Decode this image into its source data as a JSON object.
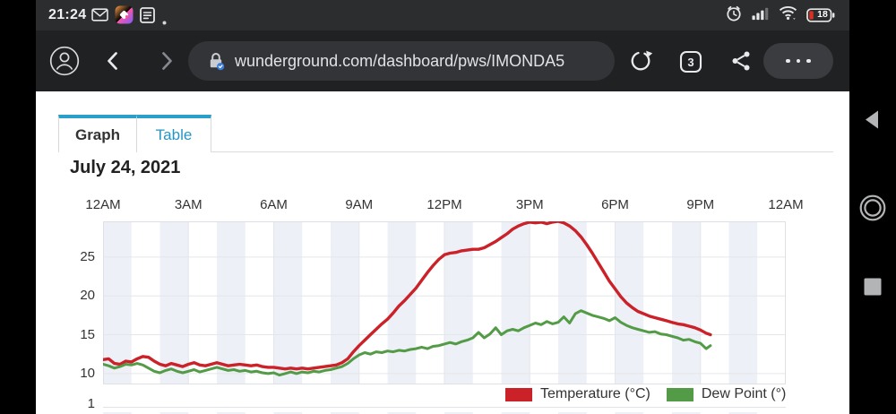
{
  "status_bar": {
    "time": "21:24",
    "battery_level": "18",
    "icons": [
      "gmail-icon",
      "gallery-icon",
      "notes-icon",
      "more-notifications-dot",
      "alarm-icon",
      "cell-signal-icon",
      "wifi-icon",
      "battery-icon"
    ]
  },
  "browser": {
    "url": "wunderground.com/dashboard/pws/IMONDA5",
    "tab_count": "3",
    "icons": [
      "account-icon",
      "back-icon",
      "forward-icon",
      "secure-lock-icon",
      "refresh-icon",
      "tab-count-box",
      "share-icon",
      "more-menu-dots"
    ]
  },
  "tabs": {
    "graph": "Graph",
    "table": "Table"
  },
  "page": {
    "date_title": "July 24, 2021"
  },
  "colors": {
    "accent_teal": "#2a9fc9",
    "temperature_red": "#cb2128",
    "dew_green": "#539b46",
    "band_fill": "#edf1f7",
    "gridline": "#e3e6ea"
  },
  "chart_data": {
    "type": "line",
    "title": "July 24, 2021",
    "x_axis": {
      "labels": [
        "12AM",
        "3AM",
        "6AM",
        "9AM",
        "12PM",
        "3PM",
        "6PM",
        "9PM",
        "12AM"
      ],
      "range_hours": [
        0,
        24
      ],
      "gridline_every_hours": 3,
      "band_every_hours": 1
    },
    "y_axis": {
      "ticks": [
        25,
        20,
        15,
        10
      ],
      "range": [
        8.6,
        29.6
      ],
      "next_panel_first_tick": "1"
    },
    "legend_position": "bottom-right",
    "grid": true,
    "legend": [
      {
        "label": "Temperature (°C)",
        "color": "#cb2128"
      },
      {
        "label": "Dew Point (°)",
        "color": "#539b46"
      }
    ],
    "series": [
      {
        "name": "Temperature (°C)",
        "color": "#cb2128",
        "points": [
          [
            0,
            11.8
          ],
          [
            0.2,
            11.9
          ],
          [
            0.4,
            11.3
          ],
          [
            0.6,
            11.2
          ],
          [
            0.8,
            11.6
          ],
          [
            1,
            11.5
          ],
          [
            1.2,
            11.9
          ],
          [
            1.4,
            12.2
          ],
          [
            1.6,
            12.1
          ],
          [
            1.8,
            11.6
          ],
          [
            2,
            11.2
          ],
          [
            2.2,
            11
          ],
          [
            2.4,
            11.3
          ],
          [
            2.6,
            11.1
          ],
          [
            2.8,
            10.9
          ],
          [
            3,
            11.2
          ],
          [
            3.2,
            11.4
          ],
          [
            3.4,
            11.1
          ],
          [
            3.6,
            11
          ],
          [
            3.8,
            11.2
          ],
          [
            4,
            11.4
          ],
          [
            4.2,
            11.2
          ],
          [
            4.4,
            11
          ],
          [
            4.6,
            11.1
          ],
          [
            4.8,
            11.2
          ],
          [
            5,
            11.1
          ],
          [
            5.2,
            11
          ],
          [
            5.4,
            11.1
          ],
          [
            5.6,
            10.9
          ],
          [
            5.8,
            10.8
          ],
          [
            6,
            10.8
          ],
          [
            6.2,
            10.7
          ],
          [
            6.4,
            10.6
          ],
          [
            6.6,
            10.7
          ],
          [
            6.8,
            10.6
          ],
          [
            7,
            10.7
          ],
          [
            7.2,
            10.6
          ],
          [
            7.4,
            10.7
          ],
          [
            7.6,
            10.8
          ],
          [
            7.8,
            10.9
          ],
          [
            8,
            11
          ],
          [
            8.2,
            11.1
          ],
          [
            8.4,
            11.4
          ],
          [
            8.6,
            11.9
          ],
          [
            8.8,
            12.8
          ],
          [
            9,
            13.6
          ],
          [
            9.2,
            14.3
          ],
          [
            9.4,
            15
          ],
          [
            9.6,
            15.7
          ],
          [
            9.8,
            16.4
          ],
          [
            10,
            17
          ],
          [
            10.2,
            17.8
          ],
          [
            10.4,
            18.7
          ],
          [
            10.6,
            19.4
          ],
          [
            10.8,
            20.2
          ],
          [
            11,
            21
          ],
          [
            11.2,
            22
          ],
          [
            11.4,
            23
          ],
          [
            11.6,
            23.9
          ],
          [
            11.8,
            24.7
          ],
          [
            12,
            25.3
          ],
          [
            12.2,
            25.5
          ],
          [
            12.4,
            25.6
          ],
          [
            12.6,
            25.8
          ],
          [
            12.8,
            25.9
          ],
          [
            13,
            26
          ],
          [
            13.2,
            26
          ],
          [
            13.4,
            26.2
          ],
          [
            13.6,
            26.6
          ],
          [
            13.8,
            27
          ],
          [
            14,
            27.5
          ],
          [
            14.2,
            28
          ],
          [
            14.4,
            28.6
          ],
          [
            14.6,
            29
          ],
          [
            14.8,
            29.3
          ],
          [
            15,
            29.5
          ],
          [
            15.2,
            29.4
          ],
          [
            15.4,
            29.5
          ],
          [
            15.6,
            29.3
          ],
          [
            15.8,
            29.5
          ],
          [
            16,
            29.6
          ],
          [
            16.2,
            29.4
          ],
          [
            16.4,
            29
          ],
          [
            16.6,
            28.4
          ],
          [
            16.8,
            27.6
          ],
          [
            17,
            26.6
          ],
          [
            17.2,
            25.5
          ],
          [
            17.4,
            24.3
          ],
          [
            17.6,
            23.1
          ],
          [
            17.8,
            21.9
          ],
          [
            18,
            20.9
          ],
          [
            18.2,
            19.9
          ],
          [
            18.4,
            19.1
          ],
          [
            18.6,
            18.5
          ],
          [
            18.8,
            18
          ],
          [
            19,
            17.7
          ],
          [
            19.2,
            17.4
          ],
          [
            19.4,
            17.2
          ],
          [
            19.6,
            17
          ],
          [
            19.8,
            16.8
          ],
          [
            20,
            16.6
          ],
          [
            20.2,
            16.4
          ],
          [
            20.4,
            16.3
          ],
          [
            20.6,
            16.1
          ],
          [
            20.8,
            15.9
          ],
          [
            21,
            15.6
          ],
          [
            21.2,
            15.2
          ],
          [
            21.35,
            15
          ]
        ]
      },
      {
        "name": "Dew Point (°)",
        "color": "#539b46",
        "points": [
          [
            0,
            11.2
          ],
          [
            0.2,
            11
          ],
          [
            0.4,
            10.7
          ],
          [
            0.6,
            10.9
          ],
          [
            0.8,
            11.2
          ],
          [
            1,
            11.1
          ],
          [
            1.2,
            11.3
          ],
          [
            1.4,
            11.1
          ],
          [
            1.6,
            10.7
          ],
          [
            1.8,
            10.3
          ],
          [
            2,
            10.1
          ],
          [
            2.2,
            10.4
          ],
          [
            2.4,
            10.6
          ],
          [
            2.6,
            10.3
          ],
          [
            2.8,
            10.1
          ],
          [
            3,
            10.3
          ],
          [
            3.2,
            10.5
          ],
          [
            3.4,
            10.2
          ],
          [
            3.6,
            10.4
          ],
          [
            3.8,
            10.6
          ],
          [
            4,
            10.8
          ],
          [
            4.2,
            10.6
          ],
          [
            4.4,
            10.4
          ],
          [
            4.6,
            10.5
          ],
          [
            4.8,
            10.3
          ],
          [
            5,
            10.4
          ],
          [
            5.2,
            10.2
          ],
          [
            5.4,
            10.3
          ],
          [
            5.6,
            10.1
          ],
          [
            5.8,
            10
          ],
          [
            6,
            10.1
          ],
          [
            6.2,
            9.8
          ],
          [
            6.4,
            10
          ],
          [
            6.6,
            10.2
          ],
          [
            6.8,
            10
          ],
          [
            7,
            10.2
          ],
          [
            7.2,
            10.1
          ],
          [
            7.4,
            10.3
          ],
          [
            7.6,
            10.2
          ],
          [
            7.8,
            10.4
          ],
          [
            8,
            10.5
          ],
          [
            8.2,
            10.7
          ],
          [
            8.4,
            10.9
          ],
          [
            8.6,
            11.3
          ],
          [
            8.8,
            11.9
          ],
          [
            9,
            12.4
          ],
          [
            9.2,
            12.7
          ],
          [
            9.4,
            12.5
          ],
          [
            9.6,
            12.8
          ],
          [
            9.8,
            12.7
          ],
          [
            10,
            12.9
          ],
          [
            10.2,
            12.8
          ],
          [
            10.4,
            13
          ],
          [
            10.6,
            12.9
          ],
          [
            10.8,
            13.1
          ],
          [
            11,
            13.2
          ],
          [
            11.2,
            13.4
          ],
          [
            11.4,
            13.2
          ],
          [
            11.6,
            13.5
          ],
          [
            11.8,
            13.6
          ],
          [
            12,
            13.8
          ],
          [
            12.2,
            14
          ],
          [
            12.4,
            13.8
          ],
          [
            12.6,
            14.1
          ],
          [
            12.8,
            14.3
          ],
          [
            13,
            14.6
          ],
          [
            13.2,
            15.3
          ],
          [
            13.4,
            14.6
          ],
          [
            13.6,
            15.1
          ],
          [
            13.8,
            15.9
          ],
          [
            14,
            15
          ],
          [
            14.2,
            15.5
          ],
          [
            14.4,
            15.7
          ],
          [
            14.6,
            15.5
          ],
          [
            14.8,
            15.9
          ],
          [
            15,
            16.2
          ],
          [
            15.2,
            16.5
          ],
          [
            15.4,
            16.3
          ],
          [
            15.6,
            16.7
          ],
          [
            15.8,
            16.4
          ],
          [
            16,
            16.6
          ],
          [
            16.2,
            17.3
          ],
          [
            16.4,
            16.5
          ],
          [
            16.6,
            17.7
          ],
          [
            16.8,
            18.1
          ],
          [
            17,
            17.8
          ],
          [
            17.2,
            17.5
          ],
          [
            17.4,
            17.3
          ],
          [
            17.6,
            17.1
          ],
          [
            17.8,
            16.8
          ],
          [
            18,
            17.2
          ],
          [
            18.2,
            16.6
          ],
          [
            18.4,
            16.2
          ],
          [
            18.6,
            15.9
          ],
          [
            18.8,
            15.7
          ],
          [
            19,
            15.5
          ],
          [
            19.2,
            15.3
          ],
          [
            19.4,
            15.4
          ],
          [
            19.6,
            15.1
          ],
          [
            19.8,
            15
          ],
          [
            20,
            14.8
          ],
          [
            20.2,
            14.6
          ],
          [
            20.4,
            14.3
          ],
          [
            20.6,
            14.4
          ],
          [
            20.8,
            14.1
          ],
          [
            21,
            13.9
          ],
          [
            21.2,
            13.2
          ],
          [
            21.35,
            13.6
          ]
        ]
      }
    ]
  }
}
